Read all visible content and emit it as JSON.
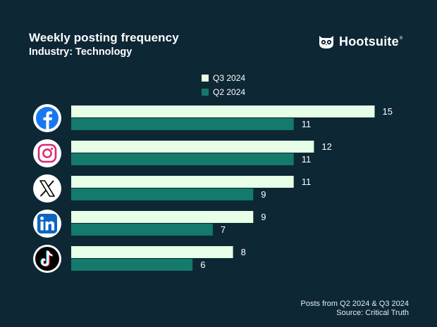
{
  "header": {
    "title": "Weekly posting frequency",
    "subtitle": "Industry: Technology"
  },
  "brand": {
    "name": "Hootsuite",
    "reg": "®",
    "icon": "owl-icon"
  },
  "legend": {
    "items": [
      {
        "label": "Q3 2024",
        "color": "#e6ffe6"
      },
      {
        "label": "Q2 2024",
        "color": "#137a6c"
      }
    ]
  },
  "footer": {
    "line1": "Posts from Q2 2024 & Q3 2024",
    "line2": "Source: Critical Truth"
  },
  "chart_data": {
    "type": "bar",
    "orientation": "horizontal",
    "title": "Weekly posting frequency",
    "subtitle": "Industry: Technology",
    "categories": [
      "Facebook",
      "Instagram",
      "X",
      "LinkedIn",
      "TikTok"
    ],
    "category_icons": [
      "facebook-icon",
      "instagram-icon",
      "x-icon",
      "linkedin-icon",
      "tiktok-icon"
    ],
    "series": [
      {
        "name": "Q3 2024",
        "values": [
          15,
          12,
          11,
          9,
          8
        ],
        "color": "#e6ffe6"
      },
      {
        "name": "Q2 2024",
        "values": [
          11,
          11,
          9,
          7,
          6
        ],
        "color": "#137a6c"
      }
    ],
    "xlim": [
      0,
      15
    ],
    "legend_position": "top-center",
    "grid": false,
    "xlabel": "",
    "ylabel": ""
  }
}
